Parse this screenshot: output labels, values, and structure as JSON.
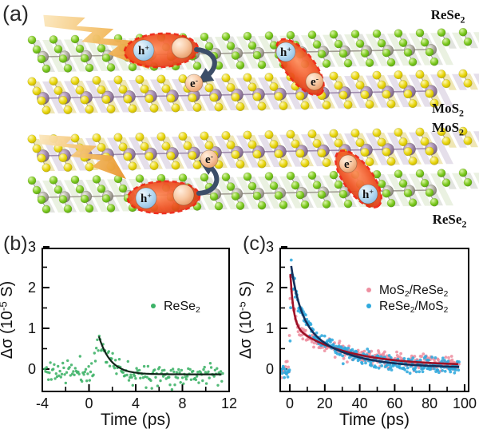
{
  "panel_a": {
    "label": "(a)",
    "crystal_labels": [
      {
        "text": "ReSe~2~"
      },
      {
        "text": "MoS~2~"
      },
      {
        "text": "MoS~2~"
      },
      {
        "text": "ReSe~2~"
      }
    ],
    "hole_label": "h^+^",
    "electron_label": "e^-^",
    "colors": {
      "se_green": "#7cc91e",
      "re_gray": "#aaa69c",
      "s_yellow": "#e9d60c",
      "mo_purple": "#9b82a6",
      "bolt_light": "#fbe7bd",
      "bolt_mid": "#f3bc62",
      "bolt_dark": "#e8922c",
      "exciton_core": "#ef5020",
      "exciton_dash": "#ee2211",
      "hole_fill": "#b6daf1",
      "electron_fill": "#f8c9a4",
      "arrow": "#3c4e68"
    }
  },
  "panel_b": {
    "label": "(b)"
  },
  "panel_c": {
    "label": "(c)"
  },
  "chart_data": [
    {
      "id": "b",
      "type": "scatter",
      "panel_label": "(b)",
      "xlabel": "Time (ps)",
      "ylabel_rich": "Δσ (10^-5^ S)",
      "xlim": [
        -4,
        12
      ],
      "ylim": [
        -0.55,
        2.96
      ],
      "xticks": [
        -4,
        0,
        4,
        8,
        12
      ],
      "xminors": [
        -2,
        2,
        6,
        10
      ],
      "yticks": [
        0,
        1,
        2,
        3
      ],
      "yminors": [
        0.5,
        1.5,
        2.5
      ],
      "grid": false,
      "legend_position": "middle right",
      "series": [
        {
          "name": "ReSe~2~",
          "color": "#3cb267",
          "fit_color": "#102418",
          "seed": 11,
          "model": {
            "t_start": -3.8,
            "t_end": 11.5,
            "step": 0.082,
            "baseline": -0.06,
            "noise": 0.15,
            "rise": 0.5,
            "t0": 0.85,
            "offset": -0.13,
            "components": [
              {
                "A": 0.93,
                "tau": 1.0
              }
            ]
          }
        }
      ]
    },
    {
      "id": "c",
      "type": "scatter",
      "panel_label": "(c)",
      "xlabel": "Time (ps)",
      "ylabel_rich": "Δσ (10^-5^ S)",
      "xlim": [
        -5.5,
        102.3
      ],
      "ylim": [
        -0.55,
        2.96
      ],
      "xticks": [
        0,
        20,
        40,
        60,
        80,
        100
      ],
      "xminors": [
        10,
        30,
        50,
        70,
        90
      ],
      "yticks": [
        0,
        1,
        2,
        3
      ],
      "yminors": [
        0.5,
        1.5,
        2.5
      ],
      "grid": false,
      "legend_position": "upper right",
      "series": [
        {
          "name": "MoS~2~/ReSe~2~",
          "color": "#ee8fa0",
          "fit_color": "#9c1126",
          "seed": 23,
          "model": {
            "t_start": -4.8,
            "t_end": 97,
            "step": 0.33,
            "baseline": -0.05,
            "noise": 0.105,
            "rise": 0.8,
            "t0": 0.3,
            "offset": 0.08,
            "components": [
              {
                "A": 1.25,
                "tau": 1.8
              },
              {
                "A": 1.0,
                "tau": 30
              }
            ]
          }
        },
        {
          "name": "ReSe~2~/MoS~2~",
          "color": "#2fa9dd",
          "fit_color": "#13305c",
          "seed": 37,
          "model": {
            "t_start": -4.8,
            "t_end": 97,
            "step": 0.33,
            "baseline": -0.09,
            "noise": 0.115,
            "rise": 0.9,
            "t0": 0.8,
            "offset": 0.03,
            "components": [
              {
                "A": 1.2,
                "tau": 5
              },
              {
                "A": 1.3,
                "tau": 24
              }
            ]
          }
        }
      ]
    }
  ]
}
